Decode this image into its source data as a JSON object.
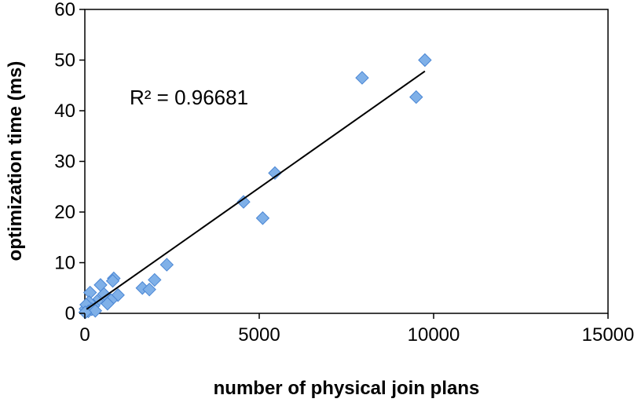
{
  "chart_data": {
    "type": "scatter",
    "xlabel": "number of physical join plans",
    "ylabel": "optimization time (ms)",
    "xlim": [
      0,
      15000
    ],
    "ylim": [
      0,
      60
    ],
    "x_ticks": [
      0,
      5000,
      10000,
      15000
    ],
    "y_ticks": [
      0,
      10,
      20,
      30,
      40,
      50,
      60
    ],
    "x_tick_labels": [
      "0",
      "5000",
      "10000",
      "15000"
    ],
    "y_tick_labels": [
      "0",
      "10",
      "20",
      "30",
      "40",
      "50",
      "60"
    ],
    "grid": false,
    "legend": "none",
    "annotation": "R² = 0.96681",
    "marker_color": "#7fb0e8",
    "marker_edge_color": "#4a86d4",
    "trendline": {
      "x": [
        50,
        9750
      ],
      "y": [
        0.8,
        47.8
      ]
    },
    "points": [
      {
        "x": 9750,
        "y": 50
      },
      {
        "x": 7950,
        "y": 46.5
      },
      {
        "x": 9500,
        "y": 42.7
      },
      {
        "x": 5450,
        "y": 27.7
      },
      {
        "x": 4550,
        "y": 22
      },
      {
        "x": 5100,
        "y": 18.8
      },
      {
        "x": 2350,
        "y": 9.6
      },
      {
        "x": 2000,
        "y": 6.6
      },
      {
        "x": 1650,
        "y": 5
      },
      {
        "x": 1850,
        "y": 4.7
      },
      {
        "x": 830,
        "y": 6.9
      },
      {
        "x": 800,
        "y": 6.4
      },
      {
        "x": 950,
        "y": 3.6
      },
      {
        "x": 750,
        "y": 2.6
      },
      {
        "x": 650,
        "y": 1.9
      },
      {
        "x": 450,
        "y": 5.6
      },
      {
        "x": 550,
        "y": 3.8
      },
      {
        "x": 350,
        "y": 2.4
      },
      {
        "x": 250,
        "y": 1.5
      },
      {
        "x": 150,
        "y": 4.1
      },
      {
        "x": 120,
        "y": 2.2
      },
      {
        "x": 80,
        "y": 1.1
      },
      {
        "x": 60,
        "y": 0.6
      },
      {
        "x": 30,
        "y": 0.3
      },
      {
        "x": 20,
        "y": 0.9
      },
      {
        "x": 40,
        "y": 1.7
      },
      {
        "x": 100,
        "y": 0.4
      },
      {
        "x": 200,
        "y": 0.8
      },
      {
        "x": 300,
        "y": 0.5
      },
      {
        "x": 10,
        "y": 0.2
      }
    ]
  }
}
